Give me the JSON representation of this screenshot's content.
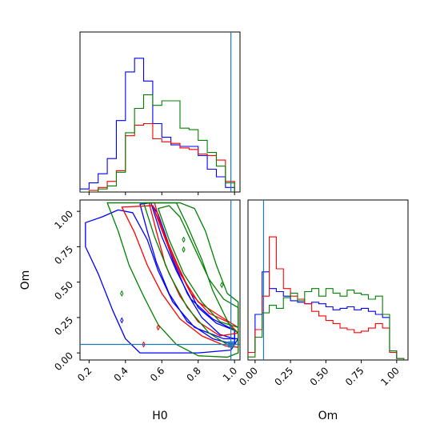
{
  "chart_data": {
    "type": "corner",
    "parameters": [
      "H0",
      "Om"
    ],
    "xlabels": {
      "H0": "H0",
      "Om": "Om"
    },
    "ylabels": {
      "Om": "Om"
    },
    "limits": {
      "H0": [
        0.15,
        1.03
      ],
      "Om": [
        -0.05,
        1.08
      ]
    },
    "ticks": {
      "H0": [
        "0.2",
        "0.4",
        "0.6",
        "0.8",
        "1.0"
      ],
      "Om": [
        "0.00",
        "0.25",
        "0.50",
        "0.75",
        "1.00"
      ]
    },
    "truth": {
      "H0": 0.98,
      "Om": 0.06,
      "color": "#1f77b4"
    },
    "series_colors": [
      "#0000ff",
      "#ff0000",
      "#008000"
    ],
    "hist_H0": {
      "bins": [
        0.15,
        0.2,
        0.25,
        0.3,
        0.35,
        0.4,
        0.45,
        0.5,
        0.55,
        0.6,
        0.65,
        0.7,
        0.75,
        0.8,
        0.85,
        0.9,
        0.95,
        1.0
      ],
      "ymax": 1.0,
      "series": [
        {
          "color": "#0000ff",
          "values": [
            0.02,
            0.06,
            0.12,
            0.22,
            0.47,
            0.79,
            0.88,
            0.73,
            0.45,
            0.36,
            0.31,
            0.3,
            0.3,
            0.24,
            0.15,
            0.1,
            0.03
          ]
        },
        {
          "color": "#ff0000",
          "values": [
            0.0,
            0.01,
            0.03,
            0.07,
            0.14,
            0.37,
            0.44,
            0.45,
            0.35,
            0.33,
            0.32,
            0.29,
            0.28,
            0.25,
            0.24,
            0.21,
            0.07
          ]
        },
        {
          "color": "#008000",
          "values": [
            0.0,
            0.0,
            0.02,
            0.04,
            0.13,
            0.39,
            0.55,
            0.64,
            0.57,
            0.6,
            0.6,
            0.42,
            0.41,
            0.34,
            0.26,
            0.17,
            0.06
          ]
        }
      ]
    },
    "hist_Om": {
      "bins": [
        -0.05,
        0.0,
        0.05,
        0.1,
        0.15,
        0.2,
        0.25,
        0.3,
        0.35,
        0.4,
        0.45,
        0.5,
        0.55,
        0.6,
        0.65,
        0.7,
        0.75,
        0.8,
        0.85,
        0.9,
        0.95,
        1.0,
        1.05
      ],
      "ymax": 1.0,
      "series": [
        {
          "color": "#0000ff",
          "values": [
            0.05,
            0.3,
            0.58,
            0.47,
            0.45,
            0.42,
            0.39,
            0.38,
            0.37,
            0.38,
            0.37,
            0.35,
            0.33,
            0.34,
            0.35,
            0.33,
            0.34,
            0.32,
            0.3,
            0.28,
            0.06,
            0.01
          ]
        },
        {
          "color": "#ff0000",
          "values": [
            0.05,
            0.2,
            0.42,
            0.81,
            0.6,
            0.47,
            0.42,
            0.4,
            0.37,
            0.32,
            0.29,
            0.26,
            0.24,
            0.21,
            0.2,
            0.18,
            0.19,
            0.21,
            0.24,
            0.21,
            0.05,
            0.01
          ]
        },
        {
          "color": "#008000",
          "values": [
            0.02,
            0.15,
            0.31,
            0.36,
            0.34,
            0.41,
            0.44,
            0.39,
            0.45,
            0.47,
            0.42,
            0.47,
            0.44,
            0.42,
            0.46,
            0.44,
            0.43,
            0.4,
            0.42,
            0.3,
            0.06,
            0.01
          ]
        }
      ]
    },
    "contours": [
      {
        "color": "#0000ff",
        "levels": [
          [
            [
              0.55,
              1.04
            ],
            [
              0.6,
              0.88
            ],
            [
              0.66,
              0.66
            ],
            [
              0.74,
              0.42
            ],
            [
              0.82,
              0.25
            ],
            [
              0.92,
              0.13
            ],
            [
              1.0,
              0.1
            ],
            [
              1.0,
              0.16
            ],
            [
              0.9,
              0.21
            ],
            [
              0.8,
              0.32
            ],
            [
              0.72,
              0.52
            ],
            [
              0.64,
              0.76
            ],
            [
              0.58,
              0.98
            ]
          ],
          [
            [
              0.48,
              1.05
            ],
            [
              0.52,
              0.86
            ],
            [
              0.57,
              0.64
            ],
            [
              0.64,
              0.42
            ],
            [
              0.74,
              0.22
            ],
            [
              0.88,
              0.1
            ],
            [
              1.0,
              0.06
            ],
            [
              1.0,
              0.16
            ],
            [
              0.88,
              0.24
            ],
            [
              0.76,
              0.38
            ],
            [
              0.68,
              0.58
            ],
            [
              0.6,
              0.82
            ],
            [
              0.54,
              1.06
            ]
          ],
          [
            [
              0.18,
              0.92
            ],
            [
              0.27,
              0.96
            ],
            [
              0.36,
              1.01
            ],
            [
              0.44,
              0.99
            ],
            [
              0.52,
              0.8
            ],
            [
              0.58,
              0.58
            ],
            [
              0.66,
              0.36
            ],
            [
              0.78,
              0.18
            ],
            [
              0.94,
              0.1
            ],
            [
              1.02,
              0.1
            ],
            [
              0.98,
              0.02
            ],
            [
              0.8,
              0.0
            ],
            [
              0.6,
              0.0
            ],
            [
              0.48,
              0.0
            ],
            [
              0.4,
              0.1
            ],
            [
              0.33,
              0.3
            ],
            [
              0.25,
              0.56
            ],
            [
              0.18,
              0.75
            ]
          ]
        ]
      },
      {
        "color": "#ff0000",
        "levels": [
          [
            [
              0.53,
              1.06
            ],
            [
              0.57,
              0.86
            ],
            [
              0.62,
              0.62
            ],
            [
              0.7,
              0.4
            ],
            [
              0.8,
              0.22
            ],
            [
              0.92,
              0.12
            ],
            [
              1.02,
              0.14
            ],
            [
              0.96,
              0.22
            ],
            [
              0.86,
              0.28
            ],
            [
              0.76,
              0.42
            ],
            [
              0.68,
              0.64
            ],
            [
              0.6,
              0.88
            ],
            [
              0.56,
              1.06
            ]
          ],
          [
            [
              0.38,
              1.03
            ],
            [
              0.45,
              0.85
            ],
            [
              0.52,
              0.62
            ],
            [
              0.6,
              0.42
            ],
            [
              0.7,
              0.24
            ],
            [
              0.82,
              0.12
            ],
            [
              0.95,
              0.05
            ],
            [
              1.02,
              0.04
            ],
            [
              1.02,
              0.18
            ],
            [
              0.92,
              0.26
            ],
            [
              0.8,
              0.36
            ],
            [
              0.7,
              0.56
            ],
            [
              0.62,
              0.8
            ],
            [
              0.55,
              1.04
            ]
          ]
        ]
      },
      {
        "color": "#008000",
        "levels": [
          [
            [
              0.58,
              1.02
            ],
            [
              0.64,
              0.8
            ],
            [
              0.72,
              0.56
            ],
            [
              0.82,
              0.36
            ],
            [
              0.92,
              0.22
            ],
            [
              1.02,
              0.18
            ],
            [
              1.02,
              0.32
            ],
            [
              0.94,
              0.38
            ],
            [
              0.86,
              0.52
            ],
            [
              0.78,
              0.74
            ],
            [
              0.7,
              0.96
            ],
            [
              0.64,
              1.04
            ]
          ],
          [
            [
              0.5,
              1.06
            ],
            [
              0.56,
              0.82
            ],
            [
              0.64,
              0.56
            ],
            [
              0.74,
              0.32
            ],
            [
              0.86,
              0.14
            ],
            [
              0.96,
              0.06
            ],
            [
              1.02,
              0.06
            ],
            [
              1.02,
              0.14
            ],
            [
              0.98,
              0.18
            ],
            [
              0.94,
              0.28
            ],
            [
              0.88,
              0.44
            ],
            [
              0.82,
              0.66
            ],
            [
              0.74,
              0.9
            ],
            [
              0.68,
              1.06
            ]
          ],
          [
            [
              0.3,
              1.06
            ],
            [
              0.36,
              0.86
            ],
            [
              0.42,
              0.62
            ],
            [
              0.5,
              0.4
            ],
            [
              0.58,
              0.2
            ],
            [
              0.68,
              0.06
            ],
            [
              0.8,
              -0.02
            ],
            [
              0.96,
              -0.03
            ],
            [
              1.02,
              0.0
            ],
            [
              1.02,
              0.36
            ],
            [
              0.96,
              0.42
            ],
            [
              0.9,
              0.62
            ],
            [
              0.84,
              0.86
            ],
            [
              0.78,
              1.02
            ],
            [
              0.7,
              1.06
            ]
          ]
        ]
      }
    ],
    "small_markers": [
      {
        "color": "#008000",
        "H0": 0.72,
        "Om": 0.73
      },
      {
        "color": "#008000",
        "H0": 0.72,
        "Om": 0.8
      },
      {
        "color": "#008000",
        "H0": 0.93,
        "Om": 0.48
      },
      {
        "color": "#008000",
        "H0": 0.38,
        "Om": 0.42
      },
      {
        "color": "#0000ff",
        "H0": 0.38,
        "Om": 0.23
      },
      {
        "color": "#ff0000",
        "H0": 0.5,
        "Om": 0.06
      },
      {
        "color": "#ff0000",
        "H0": 0.58,
        "Om": 0.18
      }
    ]
  }
}
